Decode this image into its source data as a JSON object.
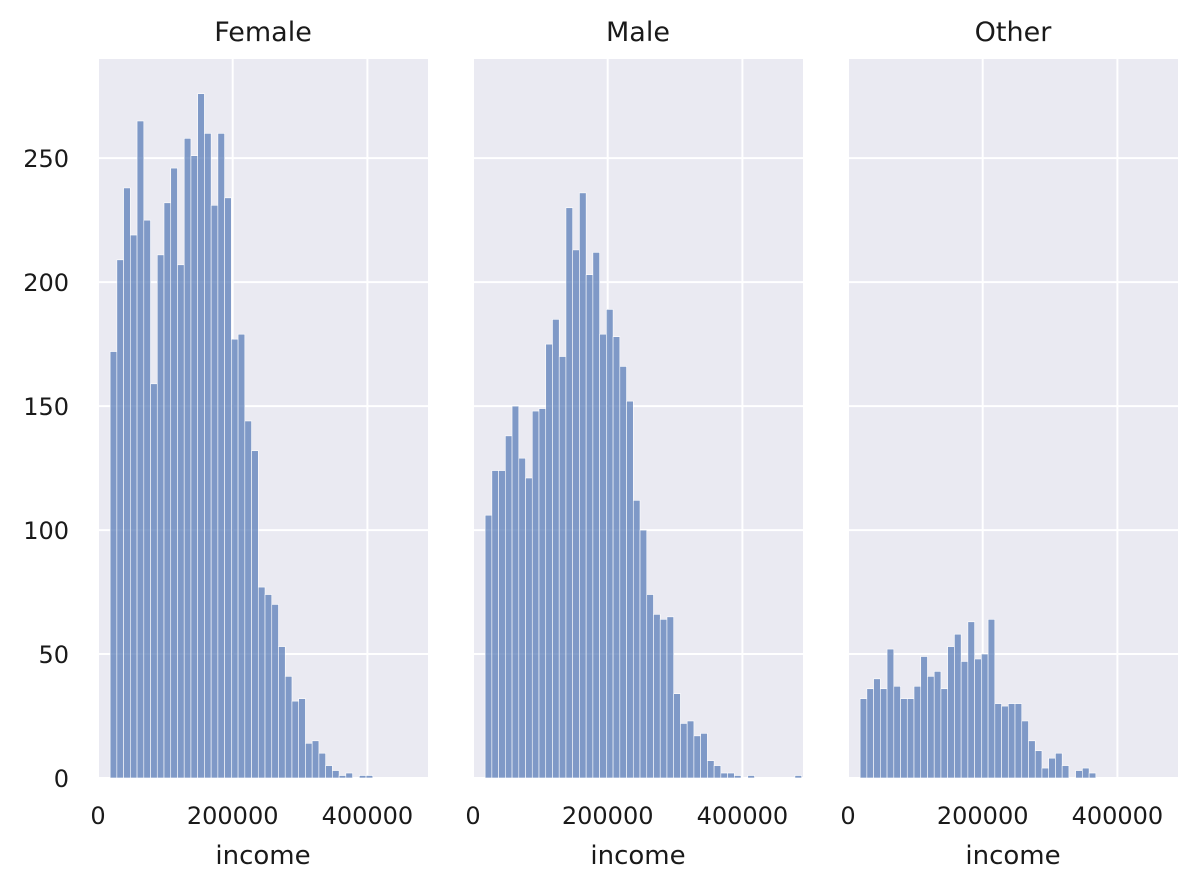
{
  "chart_data": {
    "type": "bar",
    "xlim": [
      0,
      490000
    ],
    "ylim": [
      0,
      290
    ],
    "xticks": [
      0,
      200000,
      400000
    ],
    "yticks": [
      0,
      50,
      100,
      150,
      200,
      250
    ],
    "xtick_labels": [
      "0",
      "200000",
      "400000"
    ],
    "ytick_labels": [
      "0",
      "50",
      "100",
      "150",
      "200",
      "250"
    ],
    "grid": true,
    "bin_start": 18000,
    "bin_width": 10000,
    "facets": [
      {
        "title": "Female",
        "xlabel": "income",
        "values": [
          172,
          209,
          238,
          219,
          265,
          225,
          159,
          211,
          232,
          246,
          207,
          258,
          251,
          276,
          260,
          231,
          260,
          234,
          177,
          179,
          144,
          132,
          77,
          74,
          70,
          53,
          41,
          31,
          32,
          14,
          15,
          10,
          5,
          3,
          1,
          2,
          0,
          1,
          1,
          0,
          0,
          0,
          0,
          0,
          0,
          0,
          0
        ]
      },
      {
        "title": "Male",
        "xlabel": "income",
        "values": [
          106,
          124,
          124,
          138,
          150,
          129,
          121,
          148,
          149,
          175,
          185,
          170,
          230,
          213,
          236,
          203,
          212,
          179,
          189,
          178,
          166,
          152,
          112,
          100,
          74,
          66,
          64,
          65,
          34,
          22,
          23,
          17,
          18,
          7,
          5,
          2,
          2,
          1,
          0,
          1,
          0,
          0,
          0,
          0,
          0,
          0,
          1
        ]
      },
      {
        "title": "Other",
        "xlabel": "income",
        "values": [
          32,
          36,
          40,
          36,
          52,
          37,
          32,
          32,
          37,
          49,
          41,
          43,
          36,
          53,
          58,
          47,
          63,
          48,
          50,
          64,
          30,
          29,
          30,
          30,
          23,
          15,
          11,
          4,
          8,
          10,
          5,
          0,
          3,
          4,
          2,
          0,
          0,
          0,
          0,
          0,
          0,
          0,
          0,
          0,
          0,
          0,
          0
        ]
      }
    ]
  }
}
